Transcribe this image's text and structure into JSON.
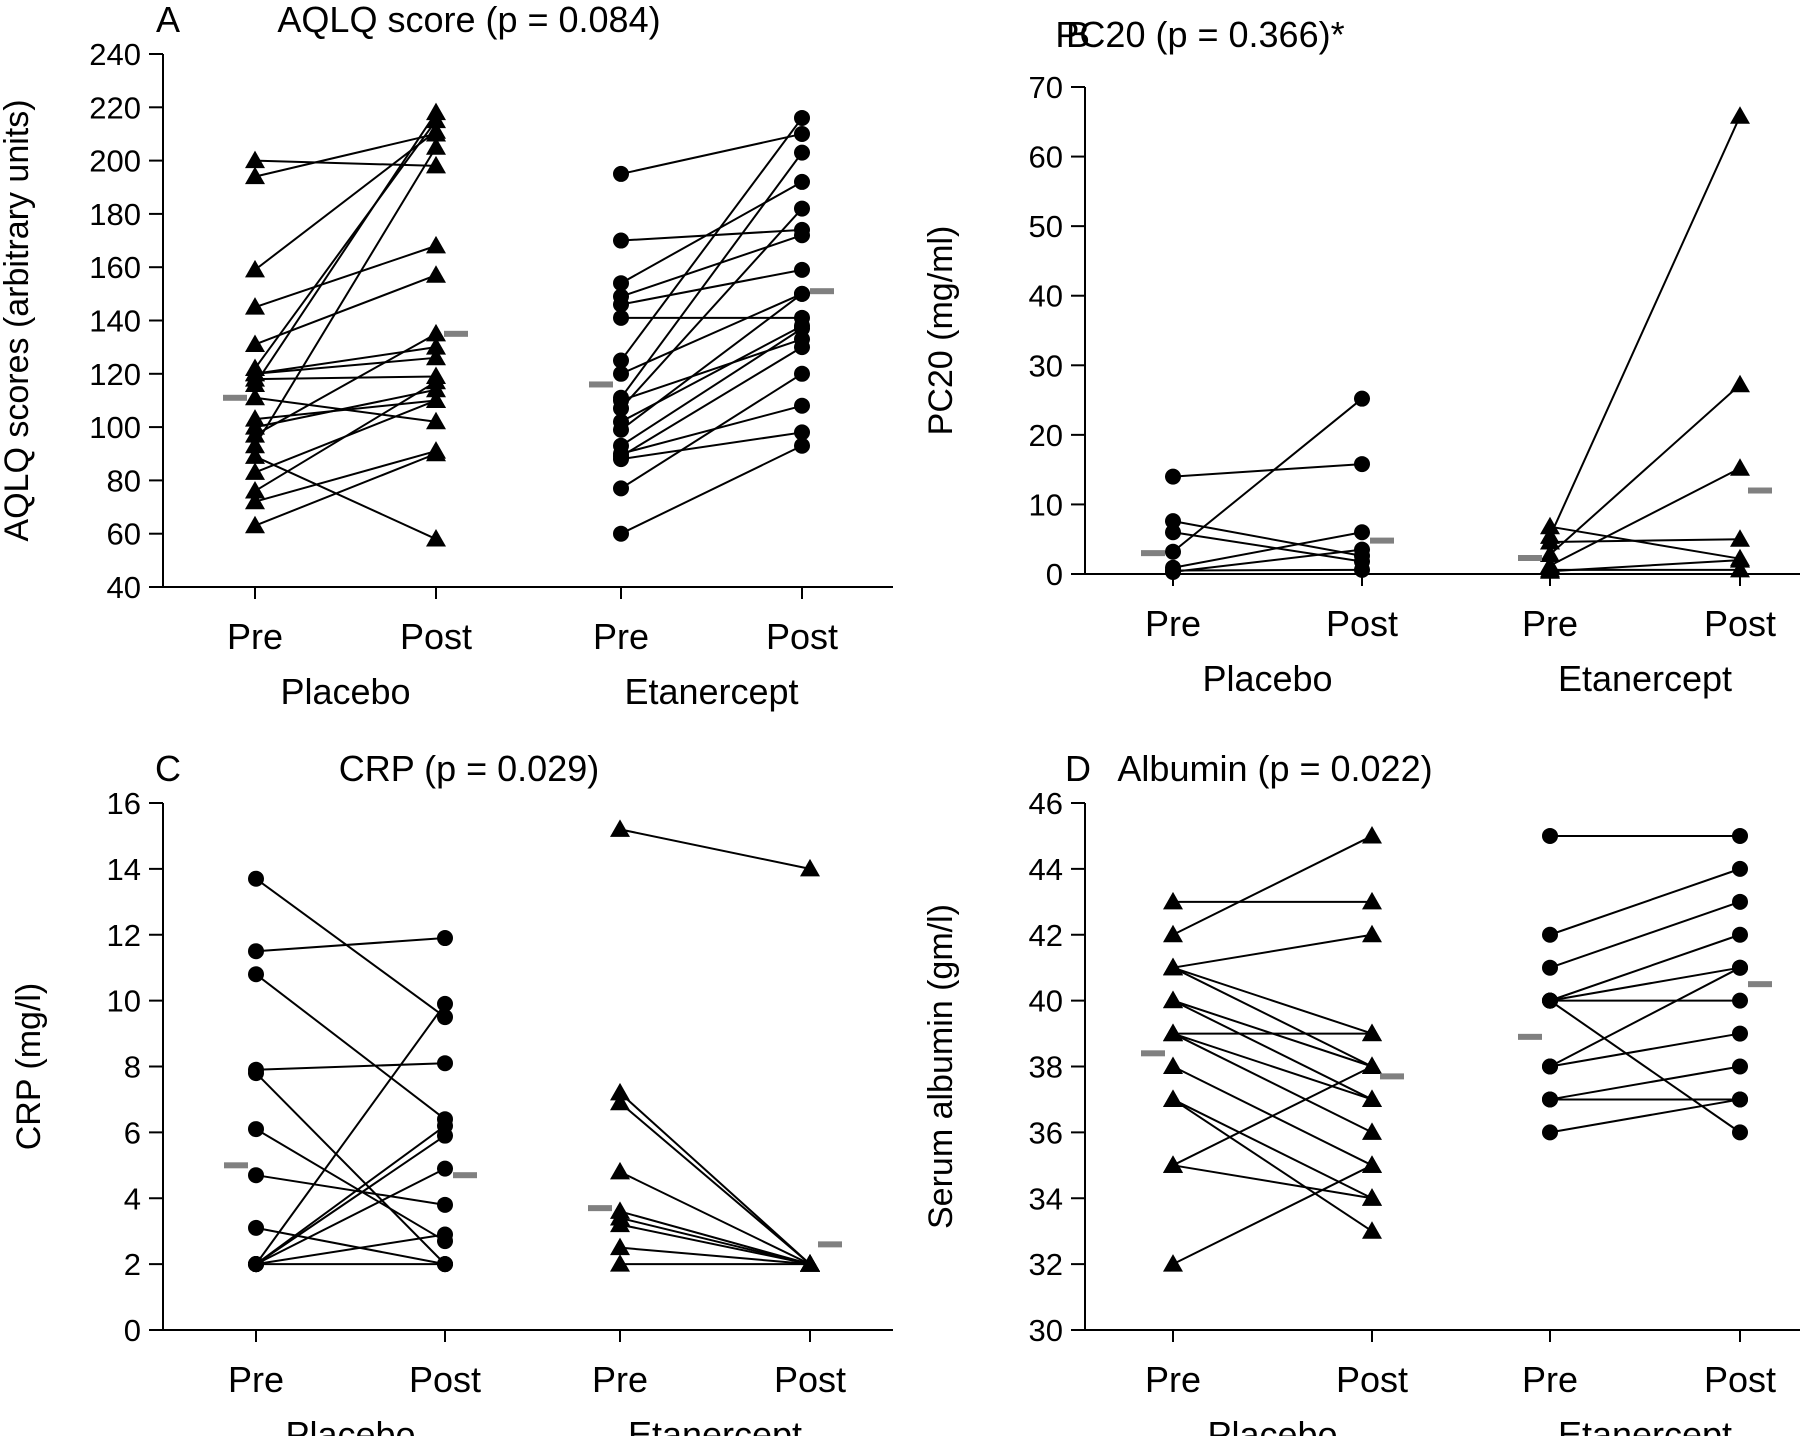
{
  "chart_data": [
    {
      "type": "line",
      "panel_label": "A",
      "title": "AQLQ score (p = 0.084)",
      "ylabel": "AQLQ scores (arbitrary units)",
      "ylim": [
        40,
        240
      ],
      "yticks": [
        40,
        60,
        80,
        100,
        120,
        140,
        160,
        180,
        200,
        220,
        240
      ],
      "categories": [
        "Pre",
        "Post",
        "Pre",
        "Post"
      ],
      "groups": [
        "Placebo",
        "Etanercept"
      ],
      "colors": {
        "line": "#000000",
        "marker": "#000000",
        "mean": "#808080"
      },
      "groups_data": [
        {
          "marker": "triangle",
          "mean": [
            111,
            135
          ],
          "pairs": [
            [
              200,
              198
            ],
            [
              194,
              210
            ],
            [
              159,
              211
            ],
            [
              145,
              168
            ],
            [
              131,
              157
            ],
            [
              122,
              215
            ],
            [
              120,
              126
            ],
            [
              118,
              119
            ],
            [
              116,
              218
            ],
            [
              111,
              102
            ],
            [
              103,
              110
            ],
            [
              100,
              114
            ],
            [
              97,
              135
            ],
            [
              93,
              205
            ],
            [
              89,
              58
            ],
            [
              83,
              110
            ],
            [
              76,
              117
            ],
            [
              72,
              91
            ],
            [
              63,
              90
            ],
            [
              120,
              130
            ]
          ]
        },
        {
          "marker": "circle",
          "mean": [
            116,
            151
          ],
          "pairs": [
            [
              195,
              210
            ],
            [
              170,
              174
            ],
            [
              154,
              192
            ],
            [
              149,
              172
            ],
            [
              146,
              159
            ],
            [
              141,
              141
            ],
            [
              125,
              216
            ],
            [
              120,
              150
            ],
            [
              111,
              203
            ],
            [
              107,
              182
            ],
            [
              99,
              150
            ],
            [
              93,
              137
            ],
            [
              89,
              130
            ],
            [
              88,
              98
            ],
            [
              77,
              120
            ],
            [
              60,
              93
            ],
            [
              110,
              133
            ],
            [
              102,
              138
            ],
            [
              90,
              108
            ]
          ]
        }
      ]
    },
    {
      "type": "line",
      "panel_label": "B",
      "title": "PC20 (p = 0.366)*",
      "ylabel": "PC20 (mg/ml)",
      "ylim": [
        0,
        70
      ],
      "yticks": [
        0,
        10,
        20,
        30,
        40,
        50,
        60,
        70
      ],
      "categories": [
        "Pre",
        "Post",
        "Pre",
        "Post"
      ],
      "groups": [
        "Placebo",
        "Etanercept"
      ],
      "colors": {
        "line": "#000000",
        "marker": "#000000",
        "mean": "#808080"
      },
      "groups_data": [
        {
          "marker": "circle",
          "mean": [
            3,
            4.8
          ],
          "pairs": [
            [
              14,
              15.8
            ],
            [
              7.6,
              2.6
            ],
            [
              6,
              1.8
            ],
            [
              3.2,
              25.2
            ],
            [
              0.9,
              6
            ],
            [
              0.5,
              0.6
            ],
            [
              0.3,
              3.5
            ]
          ]
        },
        {
          "marker": "triangle",
          "mean": [
            2.3,
            12
          ],
          "pairs": [
            [
              6.8,
              2.2
            ],
            [
              5.4,
              65.8
            ],
            [
              4.6,
              5
            ],
            [
              2.8,
              27.2
            ],
            [
              1.2,
              15.2
            ],
            [
              0.6,
              0.6
            ],
            [
              0.4,
              2
            ]
          ]
        }
      ]
    },
    {
      "type": "line",
      "panel_label": "C",
      "title": "CRP (p = 0.029)",
      "ylabel": "CRP (mg/l)",
      "ylim": [
        0,
        16
      ],
      "yticks": [
        0,
        2,
        4,
        6,
        8,
        10,
        12,
        14,
        16
      ],
      "categories": [
        "Pre",
        "Post",
        "Pre",
        "Post"
      ],
      "groups": [
        "Placebo",
        "Etanercept"
      ],
      "colors": {
        "line": "#000000",
        "marker": "#000000",
        "mean": "#808080"
      },
      "groups_data": [
        {
          "marker": "circle",
          "mean": [
            5,
            4.7
          ],
          "pairs": [
            [
              13.7,
              9.5
            ],
            [
              11.5,
              11.9
            ],
            [
              10.8,
              6.4
            ],
            [
              7.9,
              8.1
            ],
            [
              7.8,
              2
            ],
            [
              6.1,
              2.7
            ],
            [
              4.7,
              3.8
            ],
            [
              3.1,
              2
            ],
            [
              2,
              9.9
            ],
            [
              2,
              6.2
            ],
            [
              2,
              5.9
            ],
            [
              2,
              4.9
            ],
            [
              2,
              2.9
            ],
            [
              2,
              2
            ]
          ]
        },
        {
          "marker": "triangle",
          "mean": [
            3.7,
            2.6
          ],
          "pairs": [
            [
              15.2,
              14
            ],
            [
              7.2,
              2
            ],
            [
              6.9,
              2
            ],
            [
              4.8,
              2
            ],
            [
              3.6,
              2
            ],
            [
              3.4,
              2
            ],
            [
              3.2,
              2
            ],
            [
              2.5,
              2
            ],
            [
              2,
              2
            ]
          ]
        }
      ]
    },
    {
      "type": "line",
      "panel_label": "D",
      "title": "Albumin (p = 0.022)",
      "ylabel": "Serum albumin (gm/l)",
      "ylim": [
        30,
        46
      ],
      "yticks": [
        30,
        32,
        34,
        36,
        38,
        40,
        42,
        44,
        46
      ],
      "categories": [
        "Pre",
        "Post",
        "Pre",
        "Post"
      ],
      "groups": [
        "Placebo",
        "Etanercept"
      ],
      "colors": {
        "line": "#000000",
        "marker": "#000000",
        "mean": "#808080"
      },
      "groups_data": [
        {
          "marker": "triangle",
          "mean": [
            38.4,
            37.7
          ],
          "pairs": [
            [
              43,
              43
            ],
            [
              42,
              45
            ],
            [
              41,
              42
            ],
            [
              41,
              38
            ],
            [
              40,
              37
            ],
            [
              39,
              39
            ],
            [
              39,
              36
            ],
            [
              38,
              35
            ],
            [
              37,
              33
            ],
            [
              37,
              34
            ],
            [
              35,
              38
            ],
            [
              32,
              35
            ],
            [
              41,
              39
            ],
            [
              40,
              38
            ],
            [
              39,
              37
            ],
            [
              35,
              34
            ]
          ]
        },
        {
          "marker": "circle",
          "mean": [
            38.9,
            40.5
          ],
          "pairs": [
            [
              45,
              45
            ],
            [
              42,
              44
            ],
            [
              41,
              43
            ],
            [
              40,
              42
            ],
            [
              40,
              40
            ],
            [
              40,
              36
            ],
            [
              38,
              41
            ],
            [
              38,
              39
            ],
            [
              37,
              38
            ],
            [
              37,
              37
            ],
            [
              36,
              37
            ],
            [
              40,
              41
            ]
          ]
        }
      ]
    }
  ]
}
